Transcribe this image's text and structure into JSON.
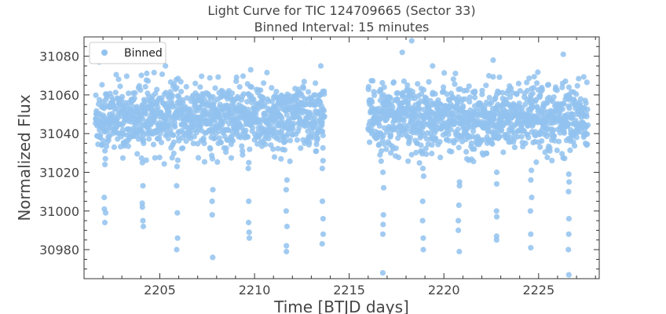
{
  "chart_data": {
    "type": "scatter",
    "title": "Light Curve for TIC 124709665 (Sector 33)",
    "subtitle": "Binned Interval: 15 minutes",
    "xlabel": "Time [BTJD days]",
    "ylabel": "Normalized Flux",
    "xlim": [
      2201.0,
      2228.2
    ],
    "ylim": [
      30965,
      31090
    ],
    "xticks": [
      2205,
      2210,
      2215,
      2220,
      2225
    ],
    "yticks": [
      30980,
      31000,
      31020,
      31040,
      31060,
      31080
    ],
    "grid": false,
    "legend_position": "top-left",
    "marker_color": "#92c2ee",
    "series": [
      {
        "name": "Binned",
        "segments": [
          [
            2201.6,
            2213.7
          ],
          [
            2216.0,
            2227.6
          ]
        ],
        "baseline": 31048,
        "scatter_sd": 8.5,
        "dips": [
          {
            "x": 2202.1,
            "y": [
              31027,
              31024,
              31007,
              31001,
              30999,
              30994
            ]
          },
          {
            "x": 2204.1,
            "y": [
              31025,
              31013,
              31004,
              31002,
              30995,
              30992
            ]
          },
          {
            "x": 2205.9,
            "y": [
              31023,
              31013,
              30999,
              30986,
              30980
            ]
          },
          {
            "x": 2207.8,
            "y": [
              31027,
              31011,
              31005,
              30998,
              30976
            ]
          },
          {
            "x": 2209.7,
            "y": [
              31025,
              31022,
              31005,
              30994,
              30989,
              30986
            ]
          },
          {
            "x": 2211.7,
            "y": [
              31016,
              31011,
              31000,
              30992,
              30982,
              30979
            ]
          },
          {
            "x": 2213.6,
            "y": [
              31026,
              31022,
              31005,
              30996,
              30988,
              30983
            ]
          },
          {
            "x": 2216.8,
            "y": [
              31020,
              31012,
              30998,
              30993,
              30988,
              30968
            ]
          },
          {
            "x": 2218.9,
            "y": [
              31022,
              31018,
              31005,
              30995,
              30986,
              30980
            ]
          },
          {
            "x": 2220.8,
            "y": [
              31015,
              31013,
              31003,
              30995,
              30990,
              30979
            ]
          },
          {
            "x": 2222.8,
            "y": [
              31020,
              31014,
              31000,
              30997,
              30987,
              30985
            ]
          },
          {
            "x": 2224.6,
            "y": [
              31021,
              31016,
              31007,
              31000,
              30988,
              30981
            ]
          },
          {
            "x": 2226.6,
            "y": [
              31019,
              31015,
              31010,
              30996,
              30988,
              30980,
              30967
            ]
          }
        ],
        "outliers": [
          {
            "x": 2201.8,
            "y": 31077
          },
          {
            "x": 2205.3,
            "y": 31075
          },
          {
            "x": 2209.8,
            "y": 31073
          },
          {
            "x": 2213.5,
            "y": 31075
          },
          {
            "x": 2217.8,
            "y": 31082
          },
          {
            "x": 2218.3,
            "y": 31088
          },
          {
            "x": 2219.4,
            "y": 31075
          },
          {
            "x": 2222.6,
            "y": 31078
          },
          {
            "x": 2226.3,
            "y": 31081
          }
        ]
      }
    ]
  }
}
